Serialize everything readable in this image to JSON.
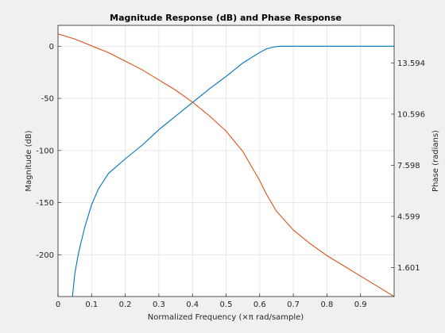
{
  "chart_data": {
    "type": "line",
    "title": "Magnitude Response (dB) and Phase Response",
    "xlabel": "Normalized Frequency (×π rad/sample)",
    "ylabel_left": "Magnitude (dB)",
    "ylabel_right": "Phase (radians)",
    "xlim": [
      0,
      1
    ],
    "ylim_left": [
      -240,
      20
    ],
    "ylim_right": [
      -0.1,
      15.8
    ],
    "grid": true,
    "x_ticks": [
      0,
      0.1,
      0.2,
      0.3,
      0.4,
      0.5,
      0.6,
      0.7,
      0.8,
      0.9
    ],
    "x_tick_labels": [
      "0",
      "0.1",
      "0.2",
      "0.3",
      "0.4",
      "0.5",
      "0.6",
      "0.7",
      "0.8",
      "0.9"
    ],
    "y_left_ticks": [
      0,
      -50,
      -100,
      -150,
      -200
    ],
    "y_left_tick_labels": [
      "0",
      "-50",
      "-100",
      "-150",
      "-200"
    ],
    "y_right_ticks": [
      13.594,
      10.596,
      7.598,
      4.599,
      1.601
    ],
    "y_right_tick_labels": [
      "13.594",
      "10.596",
      "7.598",
      "4.599",
      "1.601"
    ],
    "series": [
      {
        "axis": "left",
        "color": "#0072bd",
        "x": [
          0.043,
          0.05,
          0.06,
          0.07,
          0.08,
          0.1,
          0.12,
          0.15,
          0.2,
          0.25,
          0.3,
          0.35,
          0.4,
          0.45,
          0.5,
          0.55,
          0.58,
          0.6,
          0.62,
          0.64,
          0.66,
          0.7,
          0.8,
          0.9,
          1.0
        ],
        "y": [
          -240,
          -218,
          -200,
          -186,
          -173,
          -152,
          -137,
          -122,
          -108,
          -95,
          -80,
          -67,
          -54,
          -41,
          -29,
          -16,
          -10,
          -6,
          -2.5,
          -0.8,
          0,
          0,
          0,
          0,
          0
        ]
      },
      {
        "axis": "right",
        "color": "#d95319",
        "x": [
          0.0,
          0.05,
          0.1,
          0.15,
          0.2,
          0.25,
          0.3,
          0.35,
          0.4,
          0.45,
          0.5,
          0.55,
          0.6,
          0.62,
          0.65,
          0.7,
          0.75,
          0.8,
          0.85,
          0.9,
          0.95,
          1.0
        ],
        "y": [
          15.3,
          15.0,
          14.6,
          14.2,
          13.7,
          13.2,
          12.6,
          12.0,
          11.3,
          10.5,
          9.6,
          8.4,
          6.7,
          5.9,
          4.9,
          3.8,
          3.0,
          2.3,
          1.7,
          1.1,
          0.5,
          -0.1
        ]
      }
    ]
  }
}
